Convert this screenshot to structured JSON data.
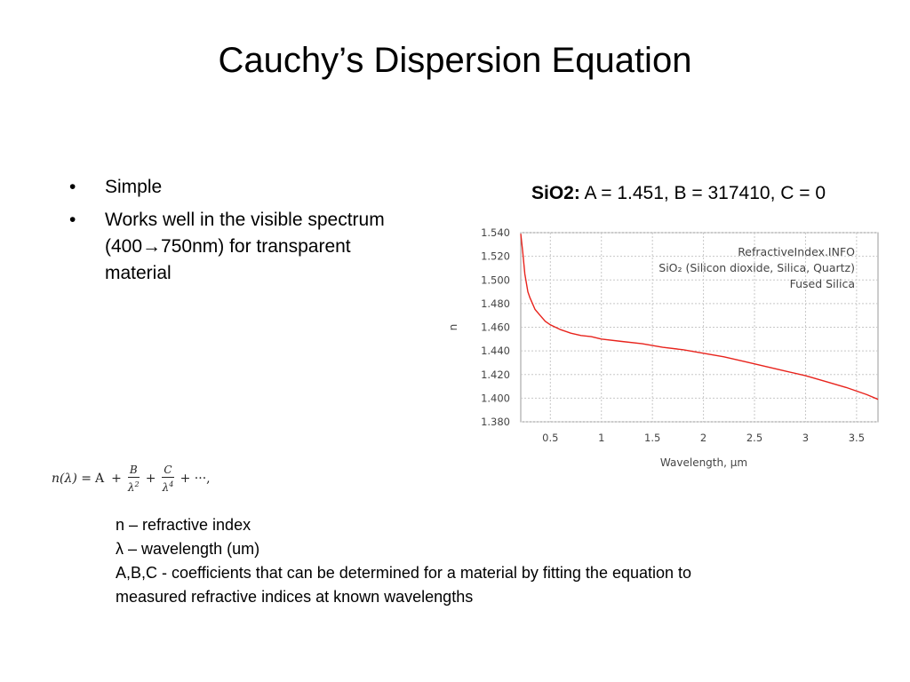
{
  "slide": {
    "title": "Cauchy’s Dispersion Equation",
    "bullets": [
      {
        "marker": "•",
        "text": "Simple"
      },
      {
        "marker": "•",
        "text": "Works well in the visible spectrum (400→750nm) for transparent material"
      }
    ],
    "caption": {
      "material": "SiO2:",
      "params": "A = 1.451,  B = 317410,  C = 0"
    },
    "formula": {
      "lhs": "n(λ) =",
      "a": "A",
      "plus1": "+",
      "b_num": "B",
      "b_den": "λ",
      "b_exp": "2",
      "plus2": "+",
      "c_num": "C",
      "c_den": "λ",
      "c_exp": "4",
      "tail": "+ ···,"
    },
    "definitions": [
      "n – refractive index",
      "λ – wavelength (um)",
      "A,B,C  -  coefficients that can be determined for a material by fitting the equation to",
      "measured refractive indices at known wavelengths"
    ]
  },
  "chart_data": {
    "type": "line",
    "xlabel": "Wavelength, µm",
    "ylabel": "n",
    "xlim": [
      0.21,
      3.71
    ],
    "ylim": [
      1.38,
      1.54
    ],
    "xticks": [
      0.5,
      1,
      1.5,
      2,
      2.5,
      3,
      3.5
    ],
    "xtick_labels": [
      "0.5",
      "1",
      "1.5",
      "2",
      "2.5",
      "3",
      "3.5"
    ],
    "yticks": [
      1.38,
      1.4,
      1.42,
      1.44,
      1.46,
      1.48,
      1.5,
      1.52,
      1.54
    ],
    "ytick_labels": [
      "1.380",
      "1.400",
      "1.420",
      "1.440",
      "1.460",
      "1.480",
      "1.500",
      "1.520",
      "1.540"
    ],
    "grid": true,
    "annotations": [
      "RefractiveIndex.INFO",
      "SiO₂ (Silicon dioxide, Silica, Quartz)",
      "Fused Silica"
    ],
    "annotation_placement": "top-right",
    "colors": {
      "line": "#e8231c",
      "grid": "#c8c8c8",
      "axis_text": "#444444"
    },
    "series": [
      {
        "x": [
          0.21,
          0.23,
          0.25,
          0.28,
          0.3,
          0.35,
          0.4,
          0.45,
          0.5,
          0.6,
          0.7,
          0.8,
          0.9,
          1.0,
          1.2,
          1.4,
          1.6,
          1.8,
          2.0,
          2.2,
          2.4,
          2.6,
          2.8,
          3.0,
          3.2,
          3.4,
          3.6,
          3.71
        ],
        "y": [
          1.539,
          1.523,
          1.505,
          1.49,
          1.485,
          1.475,
          1.47,
          1.465,
          1.462,
          1.458,
          1.455,
          1.453,
          1.452,
          1.45,
          1.448,
          1.446,
          1.443,
          1.441,
          1.438,
          1.435,
          1.431,
          1.427,
          1.423,
          1.419,
          1.414,
          1.409,
          1.403,
          1.399
        ]
      }
    ]
  }
}
